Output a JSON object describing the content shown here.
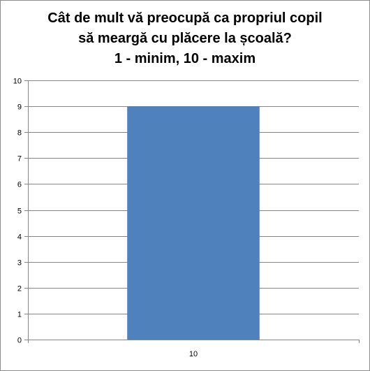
{
  "chart_data": {
    "type": "bar",
    "title_lines": [
      "Cât de mult vă preocupă ca propriul copil",
      "să meargă cu plăcere la școală?",
      "1 - minim, 10 - maxim"
    ],
    "categories": [
      "10"
    ],
    "values": [
      9
    ],
    "ylim": [
      0,
      10
    ],
    "yticks": [
      "0",
      "1",
      "2",
      "3",
      "4",
      "5",
      "6",
      "7",
      "8",
      "9",
      "10"
    ],
    "grid": true,
    "legend": "none",
    "bar_color": "#4f81bd",
    "xlabel": "",
    "ylabel": ""
  }
}
